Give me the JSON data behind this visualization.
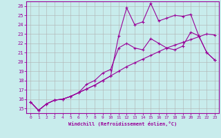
{
  "xlabel": "Windchill (Refroidissement éolien,°C)",
  "ylabel": "",
  "background_color": "#c8ecec",
  "line_color": "#990099",
  "grid_color": "#b0b0b0",
  "xlim": [
    -0.5,
    23.5
  ],
  "ylim": [
    14.5,
    26.5
  ],
  "yticks": [
    15,
    16,
    17,
    18,
    19,
    20,
    21,
    22,
    23,
    24,
    25,
    26
  ],
  "xticks": [
    0,
    1,
    2,
    3,
    4,
    5,
    6,
    7,
    8,
    9,
    10,
    11,
    12,
    13,
    14,
    15,
    16,
    17,
    18,
    19,
    20,
    21,
    22,
    23
  ],
  "line1_x": [
    0,
    1,
    2,
    3,
    4,
    5,
    6,
    7,
    8,
    9,
    10,
    11,
    12,
    13,
    14,
    15,
    16,
    17,
    18,
    19,
    20,
    21,
    22,
    23
  ],
  "line1_y": [
    15.7,
    14.8,
    15.5,
    15.9,
    16.0,
    16.3,
    16.7,
    17.1,
    17.5,
    18.0,
    18.5,
    22.8,
    25.8,
    24.0,
    24.3,
    26.3,
    24.4,
    24.7,
    25.0,
    24.9,
    25.1,
    22.8,
    21.0,
    20.2
  ],
  "line2_x": [
    0,
    1,
    2,
    3,
    4,
    5,
    6,
    7,
    8,
    9,
    10,
    11,
    12,
    13,
    14,
    15,
    16,
    17,
    18,
    19,
    20,
    21,
    22,
    23
  ],
  "line2_y": [
    15.7,
    14.8,
    15.5,
    15.9,
    16.0,
    16.3,
    16.7,
    17.6,
    18.0,
    18.8,
    19.2,
    21.5,
    22.0,
    21.5,
    21.3,
    22.5,
    22.0,
    21.5,
    21.3,
    21.7,
    23.2,
    22.8,
    21.0,
    20.2
  ],
  "line3_x": [
    0,
    1,
    2,
    3,
    4,
    5,
    6,
    7,
    8,
    9,
    10,
    11,
    12,
    13,
    14,
    15,
    16,
    17,
    18,
    19,
    20,
    21,
    22,
    23
  ],
  "line3_y": [
    15.7,
    14.8,
    15.5,
    15.9,
    16.0,
    16.3,
    16.7,
    17.1,
    17.5,
    18.0,
    18.5,
    19.0,
    19.5,
    19.9,
    20.3,
    20.7,
    21.1,
    21.5,
    21.8,
    22.1,
    22.4,
    22.7,
    23.0,
    22.9
  ]
}
